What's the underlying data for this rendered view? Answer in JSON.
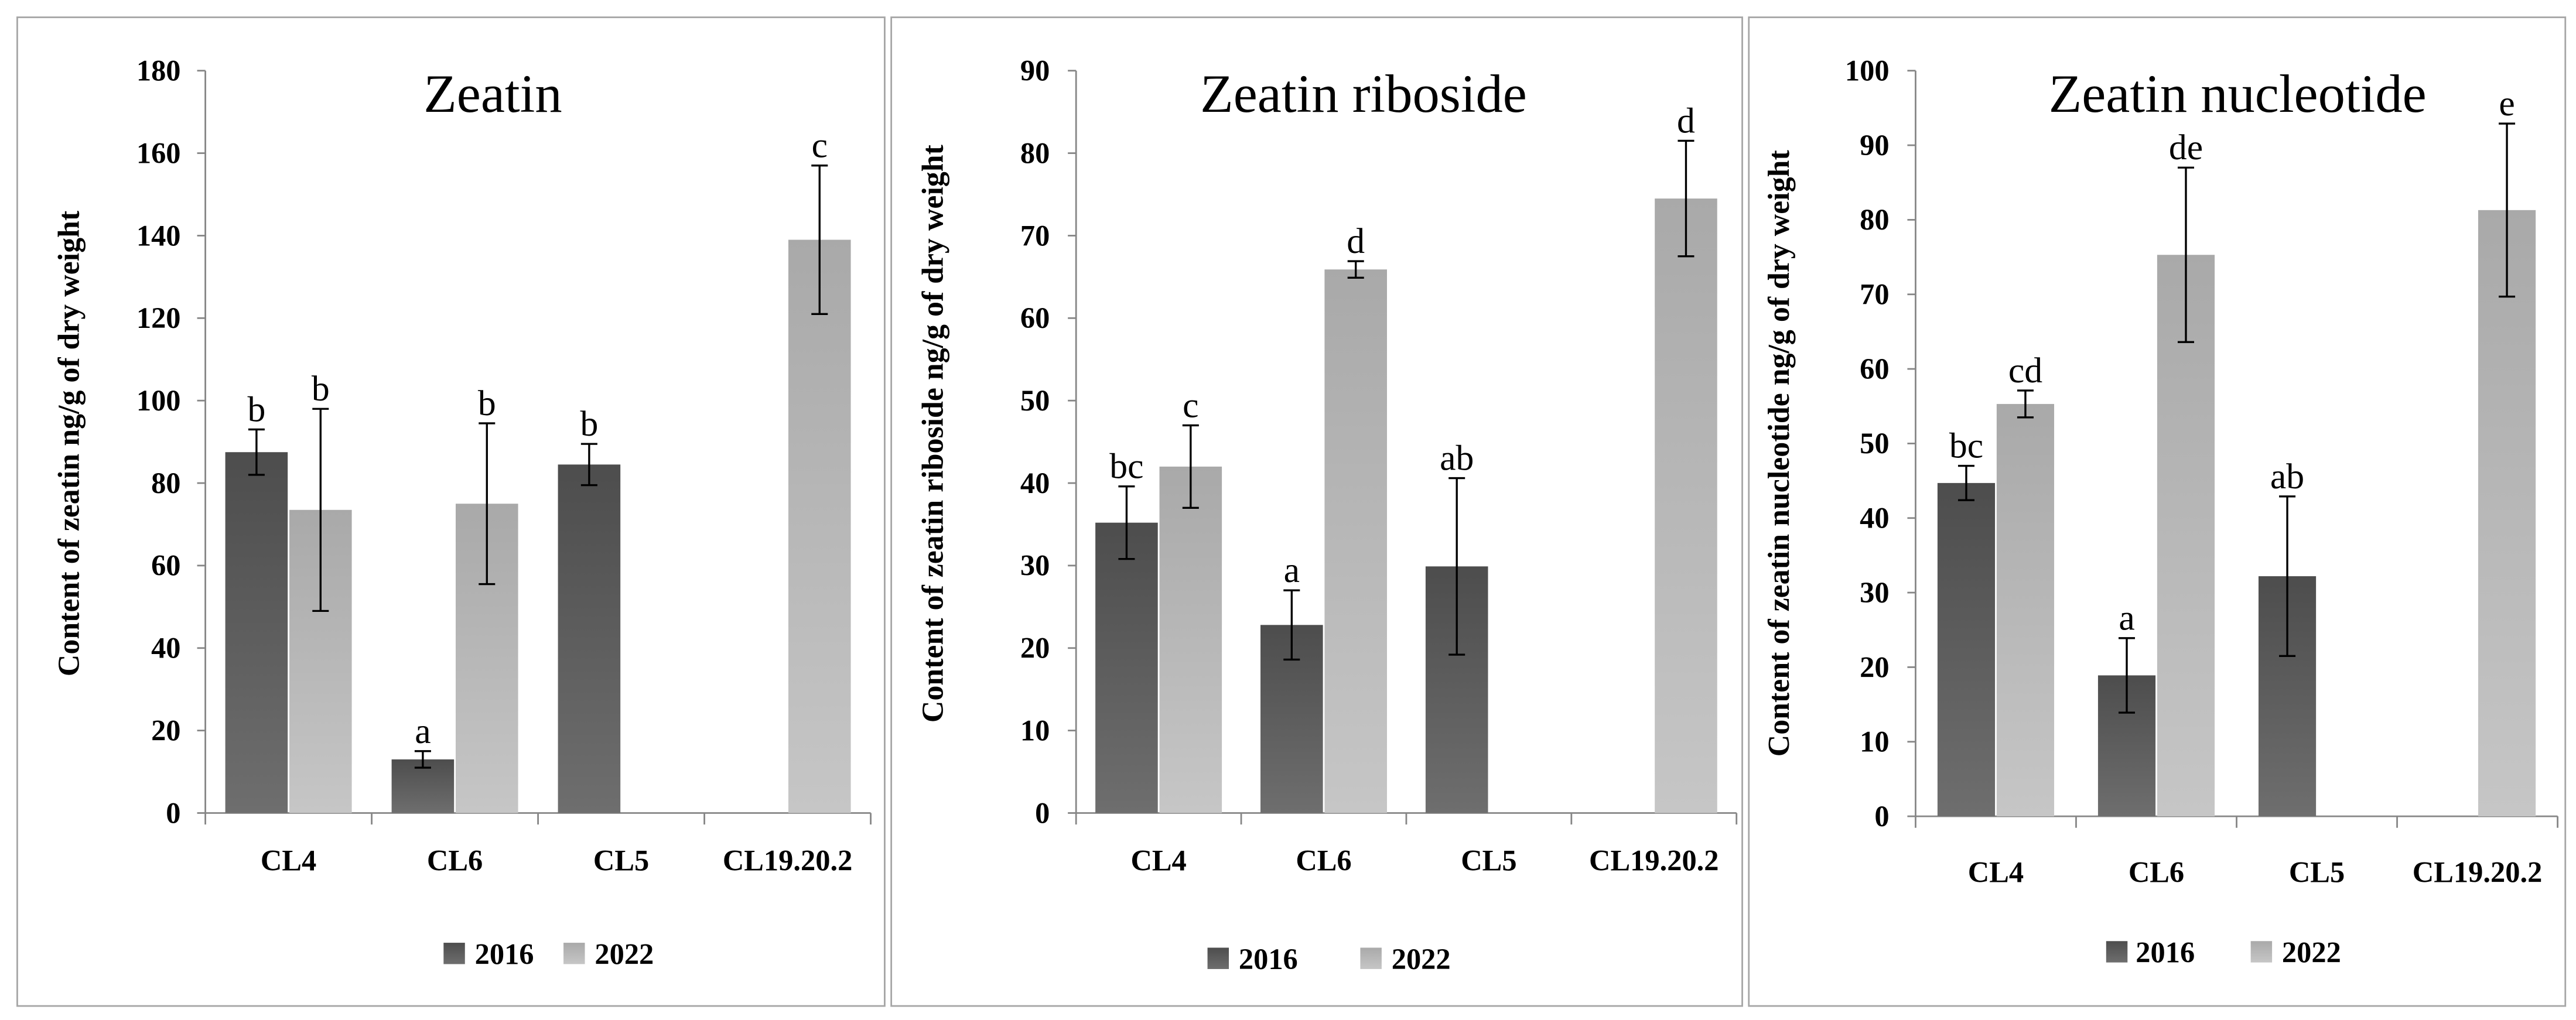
{
  "chart_data": [
    {
      "type": "bar",
      "title": "Zeatin",
      "ylabel": "Content of zeatin ng/g of dry weight",
      "categories": [
        "CL4",
        "CL6",
        "CL5",
        "CL19.20.2"
      ],
      "ylim": [
        0,
        180
      ],
      "yticks": [
        0,
        20,
        40,
        60,
        80,
        100,
        120,
        140,
        160,
        180
      ],
      "series": [
        {
          "name": "2016",
          "values": [
            87.5,
            13,
            84.5,
            null
          ],
          "errors": [
            5.5,
            2,
            5,
            null
          ],
          "letters": [
            "b",
            "a",
            "b",
            null
          ],
          "color_top": "#4d4d4d",
          "color_bottom": "#6e6e6e"
        },
        {
          "name": "2022",
          "values": [
            73.5,
            75,
            null,
            139
          ],
          "errors": [
            24.5,
            19.5,
            null,
            18
          ],
          "letters": [
            "b",
            "b",
            null,
            "c"
          ],
          "color_top": "#a9a9a9",
          "color_bottom": "#c6c6c6"
        }
      ]
    },
    {
      "type": "bar",
      "title": "Zeatin riboside",
      "ylabel": "Content of zeatin riboside ng/g of dry weight",
      "categories": [
        "CL4",
        "CL6",
        "CL5",
        "CL19.20.2"
      ],
      "ylim": [
        0,
        90
      ],
      "yticks": [
        0,
        10,
        20,
        30,
        40,
        50,
        60,
        70,
        80,
        90
      ],
      "series": [
        {
          "name": "2016",
          "values": [
            35.2,
            22.8,
            29.9,
            null
          ],
          "errors": [
            4.4,
            4.2,
            10.7,
            null
          ],
          "letters": [
            "bc",
            "a",
            "ab",
            null
          ],
          "color_top": "#4d4d4d",
          "color_bottom": "#6e6e6e"
        },
        {
          "name": "2022",
          "values": [
            42,
            65.9,
            null,
            74.5
          ],
          "errors": [
            5,
            1,
            null,
            7
          ],
          "letters": [
            "c",
            "d",
            null,
            "d"
          ],
          "color_top": "#a9a9a9",
          "color_bottom": "#c6c6c6"
        }
      ]
    },
    {
      "type": "bar",
      "title": "Zeatin nucleotide",
      "ylabel": "Content of zeatin nucleotide ng/g of dry weight",
      "categories": [
        "CL4",
        "CL6",
        "CL5",
        "CL19.20.2"
      ],
      "ylim": [
        0,
        100
      ],
      "yticks": [
        0,
        10,
        20,
        30,
        40,
        50,
        60,
        70,
        80,
        90,
        100
      ],
      "series": [
        {
          "name": "2016",
          "values": [
            44.7,
            18.9,
            32.2,
            null
          ],
          "errors": [
            2.3,
            5,
            10.7,
            null
          ],
          "letters": [
            "bc",
            "a",
            "ab",
            null
          ],
          "color_top": "#4d4d4d",
          "color_bottom": "#6e6e6e"
        },
        {
          "name": "2022",
          "values": [
            55.3,
            75.3,
            null,
            81.3
          ],
          "errors": [
            1.8,
            11.7,
            null,
            11.6
          ],
          "letters": [
            "cd",
            "de",
            null,
            "e"
          ],
          "color_top": "#a9a9a9",
          "color_bottom": "#c6c6c6"
        }
      ]
    }
  ]
}
